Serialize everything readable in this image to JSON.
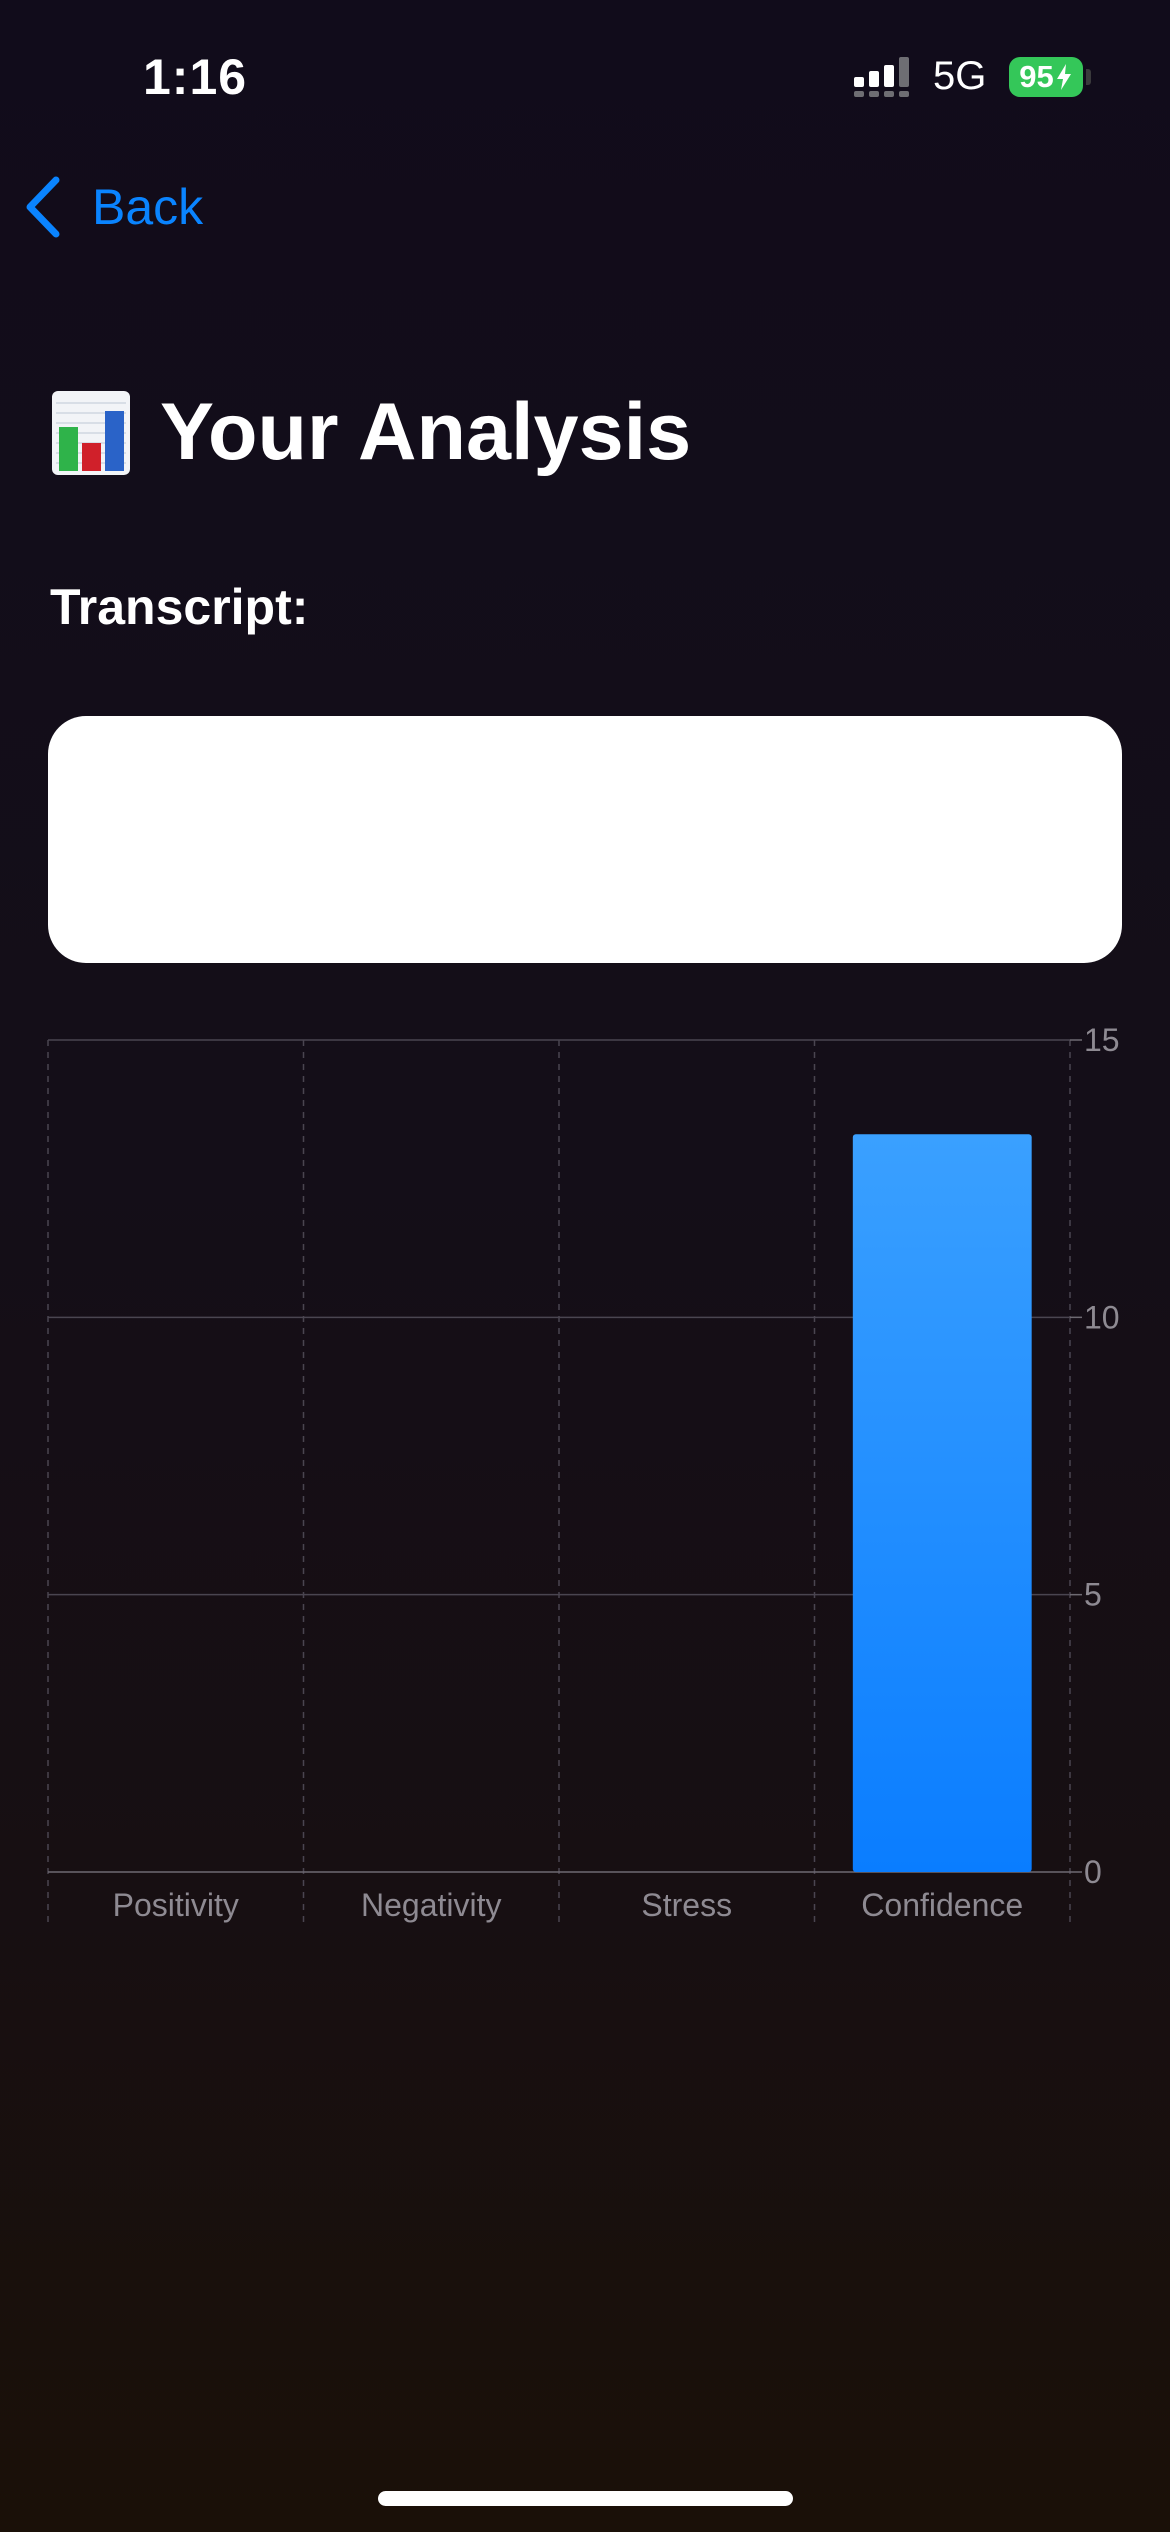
{
  "status_bar": {
    "time": "1:16",
    "network": "5G",
    "battery": "95",
    "battery_color": "#34c759"
  },
  "nav": {
    "back_label": "Back",
    "back_icon": "chevron-left-icon",
    "accent": "#0a84ff"
  },
  "header": {
    "title": "Your Analysis",
    "emoji_icon": "bar-chart-emoji-icon"
  },
  "transcript": {
    "label": "Transcript:",
    "text": ""
  },
  "chart_data": {
    "type": "bar",
    "categories": [
      "Positivity",
      "Negativity",
      "Stress",
      "Confidence"
    ],
    "values": [
      0,
      0,
      0,
      13.3
    ],
    "ylim": [
      0,
      15
    ],
    "yticks": [
      0,
      5,
      10,
      15
    ],
    "ytick_labels": [
      "0",
      "5",
      "10",
      "15"
    ],
    "y_axis_side": "right",
    "grid": true,
    "bar_color_top": "#3aa0ff",
    "bar_color_bottom": "#0a7dff"
  }
}
